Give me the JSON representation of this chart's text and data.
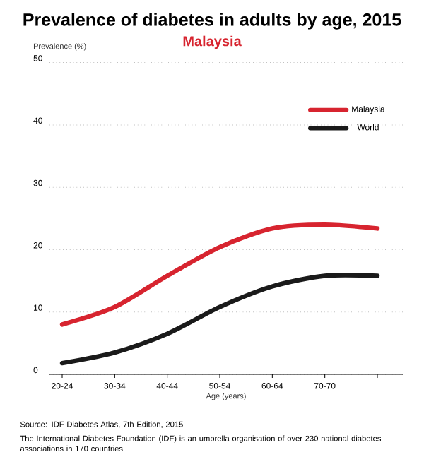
{
  "chart_data": {
    "type": "line",
    "title": "Prevalence of diabetes in adults by age, 2015",
    "subtitle": "Malaysia",
    "xlabel": "Age (years)",
    "ylabel": "Prevalence (%)",
    "categories": [
      "20-24",
      "30-34",
      "40-44",
      "50-54",
      "60-64",
      "70-70",
      null
    ],
    "series": [
      {
        "name": "Malaysia",
        "color": "#d7242f",
        "values": [
          8,
          10.8,
          15.8,
          20.4,
          23.4,
          24,
          23.4
        ]
      },
      {
        "name": "World",
        "color": "#1a1a1a",
        "values": [
          1.8,
          3.5,
          6.5,
          10.8,
          14.1,
          15.8,
          15.8
        ]
      }
    ],
    "ylim": [
      0,
      50
    ],
    "yticks": [
      0,
      10,
      20,
      30,
      40,
      50
    ],
    "grid": "y",
    "legend": "top right",
    "marker": "none",
    "line_style": "solid",
    "annotations": [
      "Source: IDF Diabetes Atlas, 7th Edition, 2015",
      "The International Diabetes Foundation (IDF) is an umbrella organisation of over 230 national diabetes associations in 170 countries"
    ]
  }
}
